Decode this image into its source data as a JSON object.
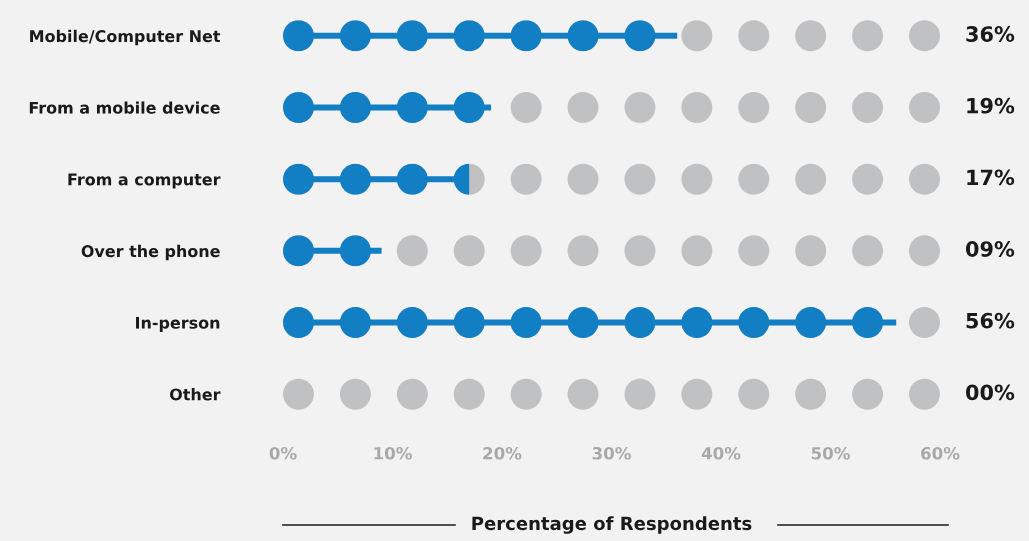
{
  "chart_data": {
    "type": "bar",
    "orientation": "horizontal",
    "categories": [
      "Mobile/Computer Net",
      "From a mobile device",
      "From a computer",
      "Over the phone",
      "In-person",
      "Other"
    ],
    "values": [
      36,
      19,
      17,
      9,
      56,
      0
    ],
    "value_labels": [
      "36%",
      "19%",
      "17%",
      "09%",
      "56%",
      "00%"
    ],
    "color": "#127fc4",
    "xlabel": "Percentage of Respondents",
    "xlim": [
      0,
      60
    ],
    "xticks": [
      {
        "value": 0,
        "label": "0%"
      },
      {
        "value": 10,
        "label": "10%"
      },
      {
        "value": 20,
        "label": "20%"
      },
      {
        "value": 30,
        "label": "30%"
      },
      {
        "value": 40,
        "label": "40%"
      },
      {
        "value": 50,
        "label": "50%"
      },
      {
        "value": 60,
        "label": "60%"
      }
    ],
    "grid": false,
    "legend": false
  }
}
